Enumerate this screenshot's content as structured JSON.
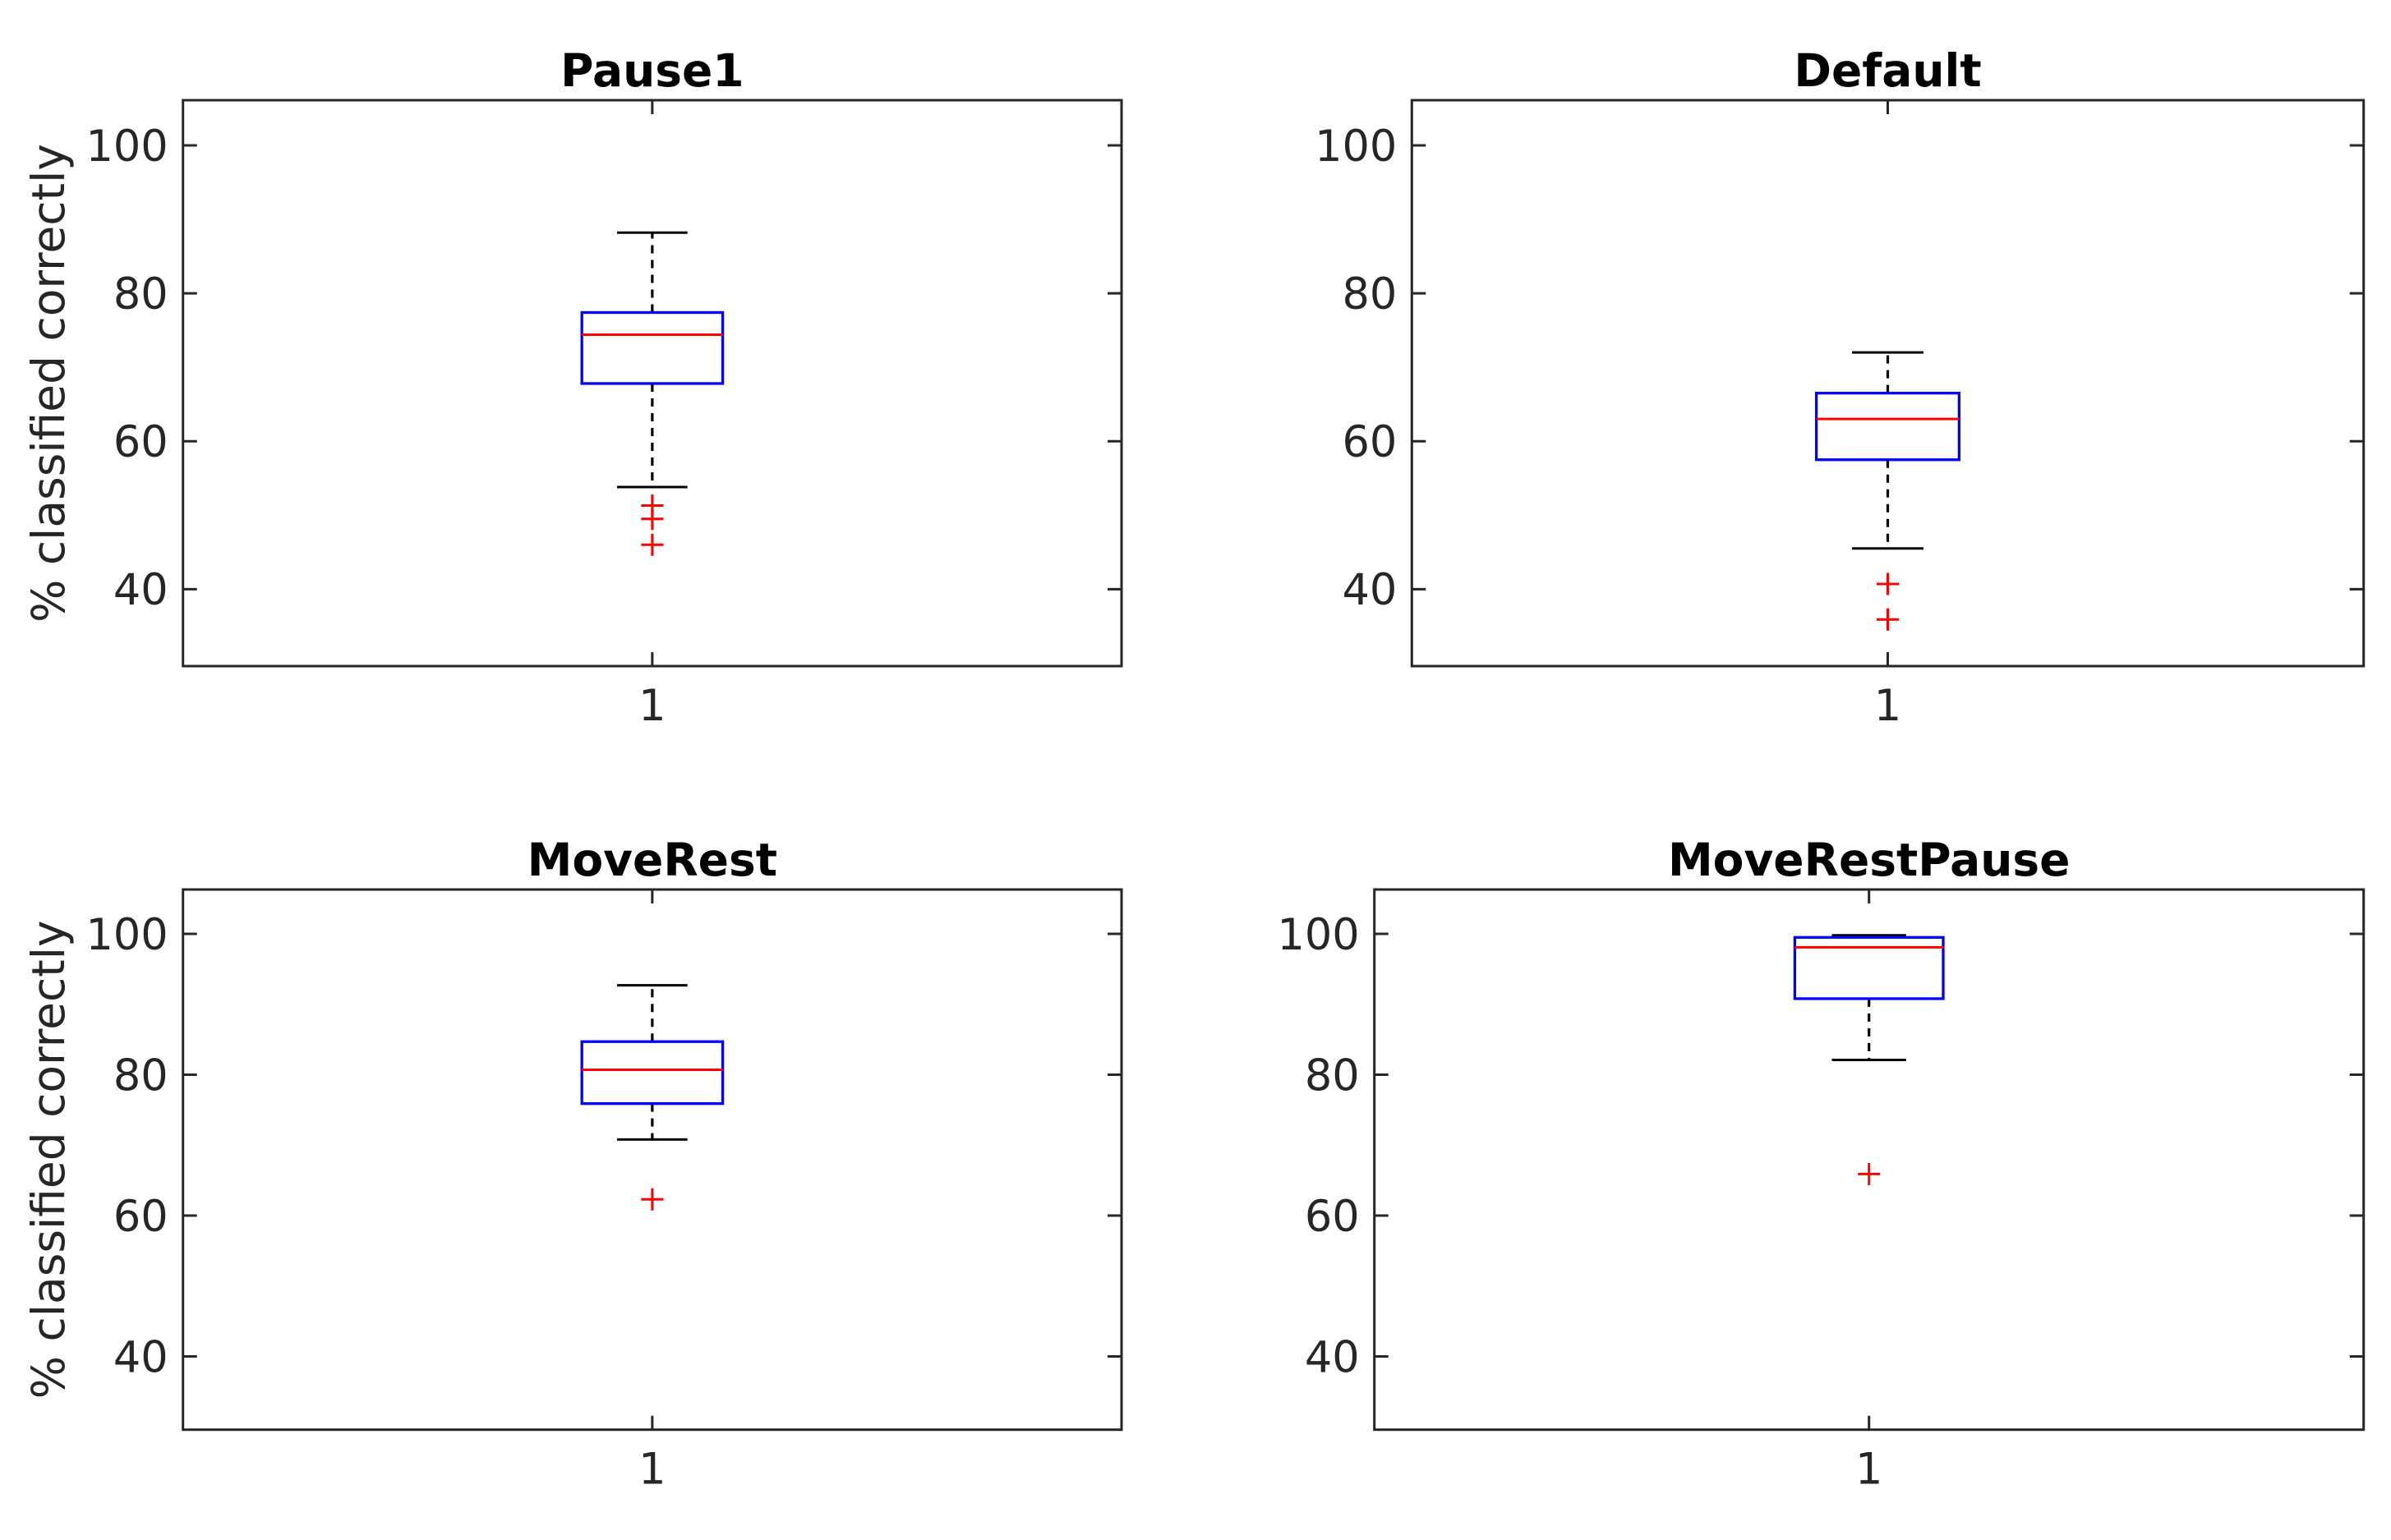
{
  "figure": {
    "background": "#ffffff"
  },
  "colors": {
    "box": "#0000ff",
    "median": "#ff0000",
    "outlier": "#ff0000",
    "whisker": "#000000",
    "cap": "#000000",
    "axis": "#262626",
    "tick_label": "#262626",
    "title": "#000000"
  },
  "chart_data": [
    {
      "type": "boxplot",
      "title": "Pause1",
      "ylabel": "% classified correctly",
      "xtick_labels": [
        "1"
      ],
      "yticks": [
        40,
        60,
        80,
        100
      ],
      "ylim": [
        29.6,
        106.1
      ],
      "grid": false,
      "series": [
        {
          "x": 1,
          "q1": 67.8,
          "median": 74.4,
          "q3": 77.4,
          "whisker_low": 53.8,
          "whisker_high": 88.2,
          "outliers": [
            51.3,
            49.5,
            46.0
          ]
        }
      ]
    },
    {
      "type": "boxplot",
      "title": "Default",
      "ylabel": null,
      "xtick_labels": [
        "1"
      ],
      "yticks": [
        40,
        60,
        80,
        100
      ],
      "ylim": [
        29.6,
        106.1
      ],
      "grid": false,
      "series": [
        {
          "x": 1,
          "q1": 57.5,
          "median": 63.0,
          "q3": 66.5,
          "whisker_low": 45.5,
          "whisker_high": 72.0,
          "outliers": [
            40.7,
            35.9
          ]
        }
      ]
    },
    {
      "type": "boxplot",
      "title": "MoveRest",
      "ylabel": "% classified correctly",
      "xtick_labels": [
        "1"
      ],
      "yticks": [
        40,
        60,
        80,
        100
      ],
      "ylim": [
        29.6,
        106.3
      ],
      "grid": false,
      "series": [
        {
          "x": 1,
          "q1": 75.9,
          "median": 80.7,
          "q3": 84.7,
          "whisker_low": 70.8,
          "whisker_high": 92.7,
          "outliers": [
            62.3
          ]
        }
      ]
    },
    {
      "type": "boxplot",
      "title": "MoveRestPause",
      "ylabel": null,
      "xtick_labels": [
        "1"
      ],
      "yticks": [
        40,
        60,
        80,
        100
      ],
      "ylim": [
        29.6,
        106.3
      ],
      "grid": false,
      "series": [
        {
          "x": 1,
          "q1": 90.8,
          "median": 98.1,
          "q3": 99.5,
          "whisker_low": 82.1,
          "whisker_high": 99.8,
          "outliers": [
            65.9
          ]
        }
      ]
    }
  ]
}
